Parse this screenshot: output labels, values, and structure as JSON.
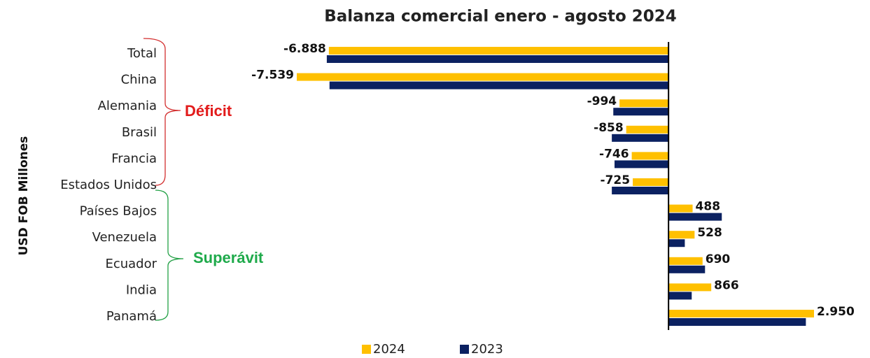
{
  "chart_data": {
    "type": "hbar",
    "title": "Balanza comercial enero - agosto 2024",
    "y_axis_label": "USD FOB Millones",
    "annotations": [
      "Déficit",
      "Superávit"
    ],
    "categories": [
      "Total",
      "China",
      "Alemania",
      "Brasil",
      "Francia",
      "Estados Unidos",
      "Países Bajos",
      "Venezuela",
      "Ecuador",
      "India",
      "Panamá"
    ],
    "series": [
      {
        "name": "2024",
        "color": "#ffc000",
        "values": [
          -6888,
          -7539,
          -994,
          -858,
          -746,
          -725,
          488,
          528,
          690,
          866,
          2950
        ],
        "value_labels": [
          "-6.888",
          "-7.539",
          "-994",
          "-858",
          "-746",
          "-725",
          "488",
          "528",
          "690",
          "866",
          "2.950"
        ]
      },
      {
        "name": "2023",
        "color": "#0b2161",
        "values": [
          -6930,
          -6875,
          -1120,
          -1150,
          -1095,
          -1150,
          1080,
          330,
          740,
          470,
          2785
        ]
      }
    ],
    "legend": "bottom"
  }
}
